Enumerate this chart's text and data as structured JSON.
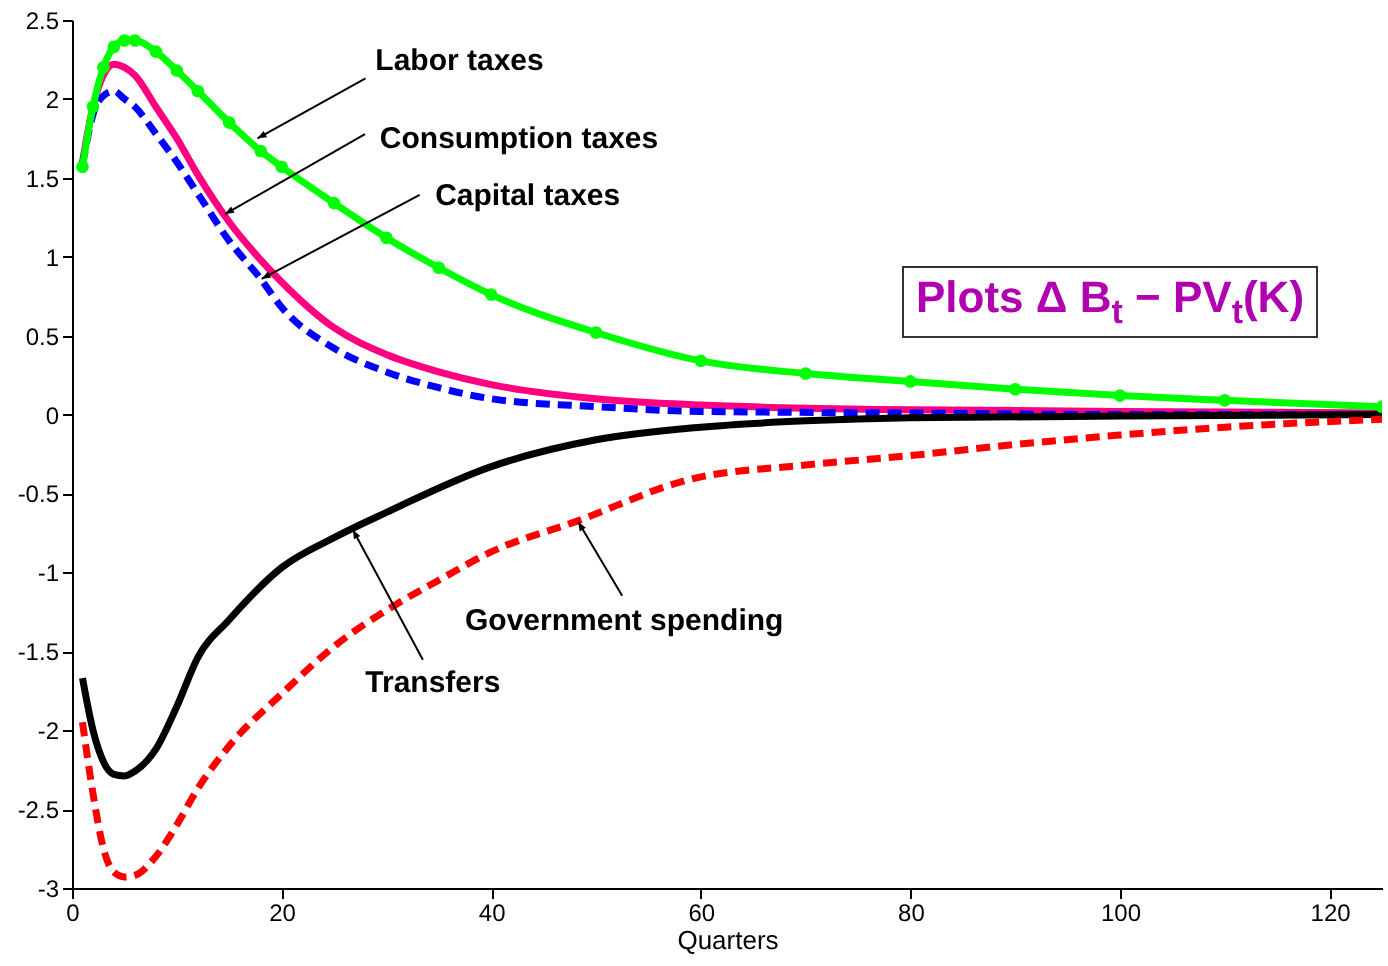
{
  "chart_data": {
    "type": "line",
    "xlabel": "Quarters",
    "xlim": [
      0,
      125
    ],
    "ylim": [
      -3,
      2.5
    ],
    "xticks": [
      0,
      20,
      40,
      60,
      80,
      100,
      120
    ],
    "yticks": [
      -3,
      -2.5,
      -2,
      -1.5,
      -1,
      -0.5,
      0,
      0.5,
      1,
      1.5,
      2,
      2.5
    ],
    "grid": false,
    "series": [
      {
        "color": "#00ff00",
        "line_style": "solid",
        "marker": "circle",
        "x": [
          1,
          2,
          3,
          4,
          5,
          6,
          8,
          10,
          12,
          15,
          18,
          20,
          25,
          30,
          35,
          40,
          50,
          60,
          70,
          80,
          90,
          100,
          110,
          125
        ],
        "values": [
          1.57,
          1.95,
          2.2,
          2.33,
          2.37,
          2.37,
          2.3,
          2.18,
          2.05,
          1.85,
          1.67,
          1.57,
          1.34,
          1.12,
          0.93,
          0.76,
          0.52,
          0.34,
          0.26,
          0.21,
          0.16,
          0.12,
          0.09,
          0.05
        ]
      },
      {
        "color": "#ff0080",
        "line_style": "solid",
        "x": [
          1,
          2,
          3,
          4,
          5,
          6,
          8,
          10,
          12,
          15,
          18,
          20,
          25,
          30,
          35,
          40,
          50,
          60,
          70,
          80,
          100,
          125
        ],
        "values": [
          1.6,
          1.95,
          2.15,
          2.22,
          2.2,
          2.15,
          1.95,
          1.75,
          1.52,
          1.22,
          0.98,
          0.84,
          0.55,
          0.38,
          0.27,
          0.19,
          0.1,
          0.06,
          0.04,
          0.03,
          0.02,
          0.01
        ]
      },
      {
        "color": "#0000ff",
        "line_style": "dashed",
        "x": [
          1,
          2,
          3,
          4,
          5,
          6,
          8,
          10,
          12,
          15,
          18,
          20,
          25,
          30,
          35,
          40,
          50,
          60,
          80,
          100,
          125
        ],
        "values": [
          1.58,
          1.9,
          2.02,
          2.05,
          2.0,
          1.95,
          1.78,
          1.6,
          1.4,
          1.1,
          0.86,
          0.68,
          0.42,
          0.27,
          0.17,
          0.1,
          0.05,
          0.02,
          0.01,
          0,
          0
        ]
      },
      {
        "color": "#000000",
        "line_style": "solid",
        "x": [
          1,
          2,
          3,
          4,
          5,
          6,
          8,
          10,
          12,
          15,
          20,
          25,
          30,
          40,
          50,
          60,
          70,
          80,
          100,
          125
        ],
        "values": [
          -1.67,
          -2.0,
          -2.2,
          -2.28,
          -2.29,
          -2.26,
          -2.12,
          -1.85,
          -1.54,
          -1.3,
          -0.97,
          -0.78,
          -0.62,
          -0.33,
          -0.16,
          -0.08,
          -0.04,
          -0.02,
          -0.01,
          0
        ]
      },
      {
        "color": "#ff0000",
        "line_style": "dashed",
        "x": [
          1,
          2,
          3,
          4,
          5,
          6,
          8,
          10,
          12,
          15,
          20,
          25,
          31,
          35,
          40,
          48,
          59,
          70,
          80,
          90,
          100,
          110,
          125
        ],
        "values": [
          -1.95,
          -2.4,
          -2.75,
          -2.9,
          -2.93,
          -2.92,
          -2.8,
          -2.6,
          -2.37,
          -2.1,
          -1.77,
          -1.47,
          -1.2,
          -1.05,
          -0.87,
          -0.68,
          -0.41,
          -0.32,
          -0.26,
          -0.19,
          -0.13,
          -0.08,
          -0.03
        ]
      }
    ],
    "annotations": [
      {
        "text": "Labor taxes",
        "x": 17.7,
        "y": 1.75
      },
      {
        "text": "Consumption taxes",
        "x": 14.6,
        "y": 1.27
      },
      {
        "text": "Capital taxes",
        "x": 18.1,
        "y": 0.86
      },
      {
        "text": "Government spending",
        "x": 48.3,
        "y": -0.68
      },
      {
        "text": "Transfers",
        "x": 26.8,
        "y": -0.73
      },
      "Plots Δ B$_{t}$ − PV$_{t}$(K)"
    ]
  }
}
